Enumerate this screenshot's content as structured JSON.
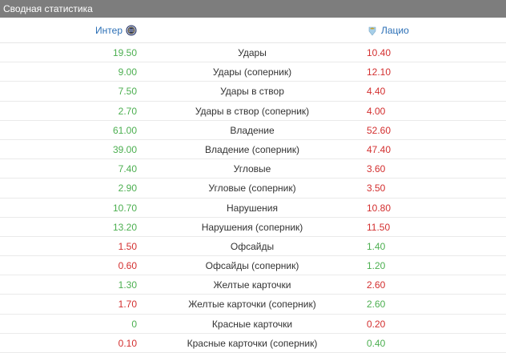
{
  "panel": {
    "title": "Сводная статистика",
    "home_team": "Интер",
    "away_team": "Лацио"
  },
  "colors": {
    "title_bg": "#7d7d7d",
    "team_link": "#2b6fb6",
    "higher": "#4caf50",
    "lower": "#d32f2f"
  },
  "icons": {
    "home_logo": "inter-logo-icon",
    "away_logo": "lazio-logo-icon"
  },
  "stats": [
    {
      "name": "Удары",
      "home": "19.50",
      "away": "10.40",
      "home_color": "win",
      "away_color": "lose"
    },
    {
      "name": "Удары (соперник)",
      "home": "9.00",
      "away": "12.10",
      "home_color": "win",
      "away_color": "lose"
    },
    {
      "name": "Удары в створ",
      "home": "7.50",
      "away": "4.40",
      "home_color": "win",
      "away_color": "lose"
    },
    {
      "name": "Удары в створ (соперник)",
      "home": "2.70",
      "away": "4.00",
      "home_color": "win",
      "away_color": "lose"
    },
    {
      "name": "Владение",
      "home": "61.00",
      "away": "52.60",
      "home_color": "win",
      "away_color": "lose"
    },
    {
      "name": "Владение (соперник)",
      "home": "39.00",
      "away": "47.40",
      "home_color": "win",
      "away_color": "lose"
    },
    {
      "name": "Угловые",
      "home": "7.40",
      "away": "3.60",
      "home_color": "win",
      "away_color": "lose"
    },
    {
      "name": "Угловые (соперник)",
      "home": "2.90",
      "away": "3.50",
      "home_color": "win",
      "away_color": "lose"
    },
    {
      "name": "Нарушения",
      "home": "10.70",
      "away": "10.80",
      "home_color": "win",
      "away_color": "lose"
    },
    {
      "name": "Нарушения (соперник)",
      "home": "13.20",
      "away": "11.50",
      "home_color": "win",
      "away_color": "lose"
    },
    {
      "name": "Офсайды",
      "home": "1.50",
      "away": "1.40",
      "home_color": "lose",
      "away_color": "win"
    },
    {
      "name": "Офсайды (соперник)",
      "home": "0.60",
      "away": "1.20",
      "home_color": "lose",
      "away_color": "win"
    },
    {
      "name": "Желтые карточки",
      "home": "1.30",
      "away": "2.60",
      "home_color": "win",
      "away_color": "lose"
    },
    {
      "name": "Желтые карточки (соперник)",
      "home": "1.70",
      "away": "2.60",
      "home_color": "lose",
      "away_color": "win"
    },
    {
      "name": "Красные карточки",
      "home": "0",
      "away": "0.20",
      "home_color": "win",
      "away_color": "lose"
    },
    {
      "name": "Красные карточки (соперник)",
      "home": "0.10",
      "away": "0.40",
      "home_color": "lose",
      "away_color": "win"
    }
  ]
}
